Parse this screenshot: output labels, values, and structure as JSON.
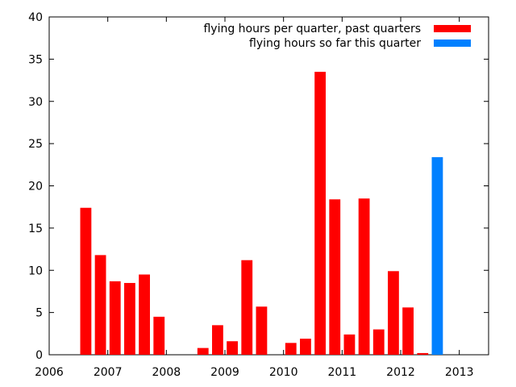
{
  "chart_data": {
    "type": "bar",
    "title": "",
    "xlabel": "",
    "ylabel": "",
    "xlim": [
      2006,
      2013.5
    ],
    "ylim": [
      0,
      40
    ],
    "xticks": [
      2006,
      2007,
      2008,
      2009,
      2010,
      2011,
      2012,
      2013
    ],
    "xtick_labels": [
      "2006",
      "2007",
      "2008",
      "2009",
      "2010",
      "2011",
      "2012",
      "2013"
    ],
    "yticks": [
      0,
      5,
      10,
      15,
      20,
      25,
      30,
      35,
      40
    ],
    "ytick_labels": [
      "0",
      "5",
      "10",
      "15",
      "20",
      "25",
      "30",
      "35",
      "40"
    ],
    "grid": false,
    "legend_position": "top-right",
    "series": [
      {
        "name": "flying hours per quarter, past quarters",
        "color": "#ff0000",
        "x": [
          2006.625,
          2006.875,
          2007.125,
          2007.375,
          2007.625,
          2007.875,
          2008.125,
          2008.375,
          2008.625,
          2008.875,
          2009.125,
          2009.375,
          2009.625,
          2009.875,
          2010.125,
          2010.375,
          2010.625,
          2010.875,
          2011.125,
          2011.375,
          2011.625,
          2011.875,
          2012.125,
          2012.375
        ],
        "values": [
          17.4,
          11.8,
          8.7,
          8.5,
          9.5,
          4.5,
          0,
          0,
          0.8,
          3.5,
          1.6,
          11.2,
          5.7,
          0,
          1.4,
          1.9,
          33.5,
          18.4,
          2.4,
          18.5,
          3.0,
          9.9,
          5.6,
          0.2
        ]
      },
      {
        "name": "flying hours so far this quarter",
        "color": "#0080ff",
        "x": [
          2012.625
        ],
        "values": [
          23.4
        ]
      }
    ]
  }
}
